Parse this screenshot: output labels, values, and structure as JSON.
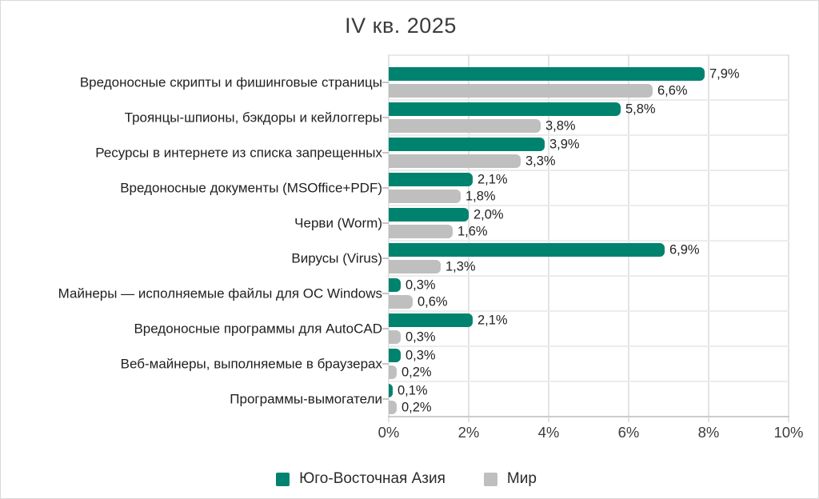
{
  "title": "IV кв. 2025",
  "colors": {
    "sea": "#00836e",
    "world": "#bfbfbf"
  },
  "axis": {
    "tick_labels": [
      "0%",
      "2%",
      "4%",
      "6%",
      "8%",
      "10%"
    ],
    "max": 10
  },
  "chart_data": {
    "type": "bar",
    "orientation": "horizontal",
    "title": "IV кв. 2025",
    "categories": [
      "Вредоносные скрипты и фишинговые страницы",
      "Троянцы-шпионы, бэкдоры и кейлоггеры",
      "Ресурсы в интернете из списка запрещенных",
      "Вредоносные документы (MSOffice+PDF)",
      "Черви (Worm)",
      "Вирусы (Virus)",
      "Майнеры — исполняемые файлы для ОС Windows",
      "Вредоносные программы для AutoCAD",
      "Веб-майнеры, выполняемые в браузерах",
      "Программы-вымогатели"
    ],
    "series": [
      {
        "name": "Юго-Восточная Азия",
        "color": "#00836e",
        "values": [
          7.9,
          5.8,
          3.9,
          2.1,
          2.0,
          6.9,
          0.3,
          2.1,
          0.3,
          0.1
        ],
        "labels": [
          "7,9%",
          "5,8%",
          "3,9%",
          "2,1%",
          "2,0%",
          "6,9%",
          "0,3%",
          "2,1%",
          "0,3%",
          "0,1%"
        ]
      },
      {
        "name": "Мир",
        "color": "#bfbfbf",
        "values": [
          6.6,
          3.8,
          3.3,
          1.8,
          1.6,
          1.3,
          0.6,
          0.3,
          0.2,
          0.2
        ],
        "labels": [
          "6,6%",
          "3,8%",
          "3,3%",
          "1,8%",
          "1,6%",
          "1,3%",
          "0,6%",
          "0,3%",
          "0,2%",
          "0,2%"
        ]
      }
    ],
    "xlim": [
      0,
      10
    ],
    "x_ticks": [
      "0%",
      "2%",
      "4%",
      "6%",
      "8%",
      "10%"
    ],
    "grid": true,
    "legend_position": "bottom"
  }
}
